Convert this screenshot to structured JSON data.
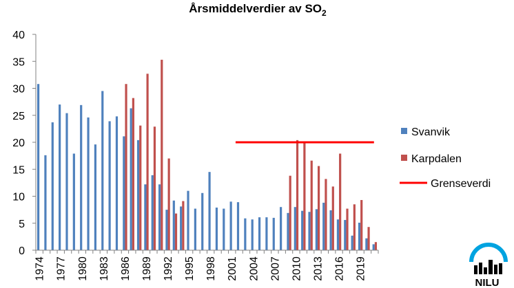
{
  "chart_data": {
    "type": "bar",
    "title": "Årsmiddelverdier av SO",
    "title_subscript": "2",
    "xlabel": "",
    "ylabel": "",
    "ylim": [
      0,
      40
    ],
    "yticks": [
      "0",
      "5",
      "10",
      "15",
      "20",
      "25",
      "30",
      "35",
      "40"
    ],
    "grid": false,
    "legend_position": "right",
    "x": [
      1974,
      1975,
      1976,
      1977,
      1978,
      1979,
      1980,
      1981,
      1982,
      1983,
      1984,
      1985,
      1986,
      1987,
      1988,
      1989,
      1990,
      1991,
      1992,
      1993,
      1994,
      1995,
      1996,
      1997,
      1998,
      1999,
      2000,
      2001,
      2002,
      2003,
      2004,
      2005,
      2006,
      2007,
      2008,
      2009,
      2010,
      2011,
      2012,
      2013,
      2014,
      2015,
      2016,
      2017,
      2018,
      2019,
      2020,
      2021
    ],
    "x_tick_labels": [
      "1974",
      "1977",
      "1980",
      "1983",
      "1986",
      "1989",
      "1992",
      "1995",
      "1998",
      "2001",
      "2004",
      "2007",
      "2010",
      "2013",
      "2016",
      "2019"
    ],
    "series": [
      {
        "name": "Svanvik",
        "color": "#4f81bd",
        "values": [
          30.8,
          17.6,
          23.7,
          27.0,
          25.4,
          17.9,
          26.9,
          24.6,
          19.6,
          29.5,
          23.9,
          24.8,
          21.1,
          26.3,
          20.4,
          12.2,
          13.9,
          12.2,
          7.5,
          9.2,
          8.1,
          11.0,
          7.7,
          10.6,
          14.5,
          7.9,
          7.7,
          9.0,
          8.9,
          5.9,
          5.7,
          6.1,
          6.1,
          6.0,
          8.0,
          6.9,
          8.0,
          7.3,
          7.1,
          7.6,
          8.8,
          7.4,
          5.7,
          5.6,
          2.7,
          5.1,
          2.2,
          1.1
        ]
      },
      {
        "name": "Karpdalen",
        "color": "#c0504d",
        "values": [
          null,
          null,
          null,
          null,
          null,
          null,
          null,
          null,
          null,
          null,
          null,
          null,
          30.8,
          28.2,
          23.1,
          32.7,
          22.9,
          35.3,
          17.0,
          6.8,
          9.1,
          null,
          null,
          null,
          null,
          null,
          null,
          null,
          null,
          null,
          null,
          null,
          null,
          null,
          null,
          13.8,
          20.4,
          20.1,
          16.6,
          15.6,
          13.2,
          11.8,
          17.9,
          7.7,
          8.5,
          9.3,
          4.3,
          1.5
        ]
      }
    ],
    "threshold": {
      "name": "Grenseverdi",
      "color": "#ff0000",
      "value": 20,
      "x_start": 2002,
      "x_end": 2021
    }
  },
  "logo": {
    "text": "NILU",
    "arc_color": "#00a3e0"
  }
}
